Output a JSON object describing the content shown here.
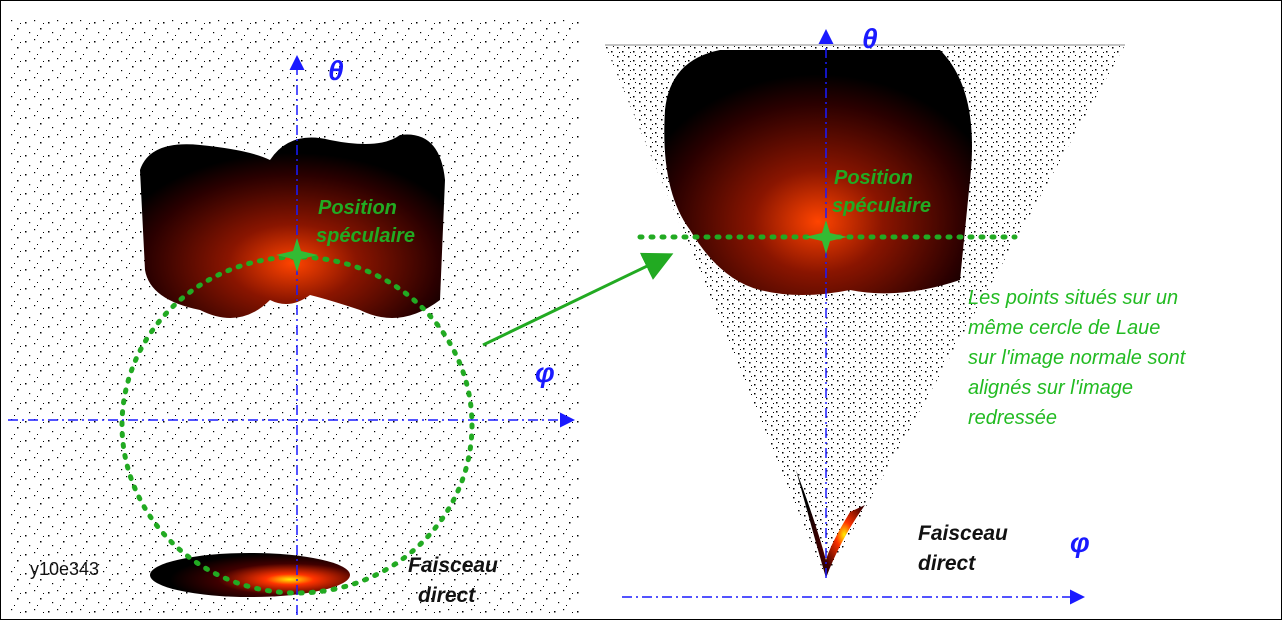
{
  "left_panel": {
    "theta_label": "θ",
    "phi_label": "φ",
    "specular_label": [
      "Position",
      "spéculaire"
    ],
    "direct_beam_label": [
      "Faisceau",
      "direct"
    ],
    "sample_id": "y10e343"
  },
  "right_panel": {
    "theta_label": "θ",
    "phi_label": "φ",
    "specular_label": [
      "Position",
      "spéculaire"
    ],
    "direct_beam_label": [
      "Faisceau",
      "direct"
    ],
    "note": [
      "Les points situés sur un",
      "même cercle de Laue",
      "sur l'image normale sont",
      "alignés sur l'image",
      "redressée"
    ]
  }
}
